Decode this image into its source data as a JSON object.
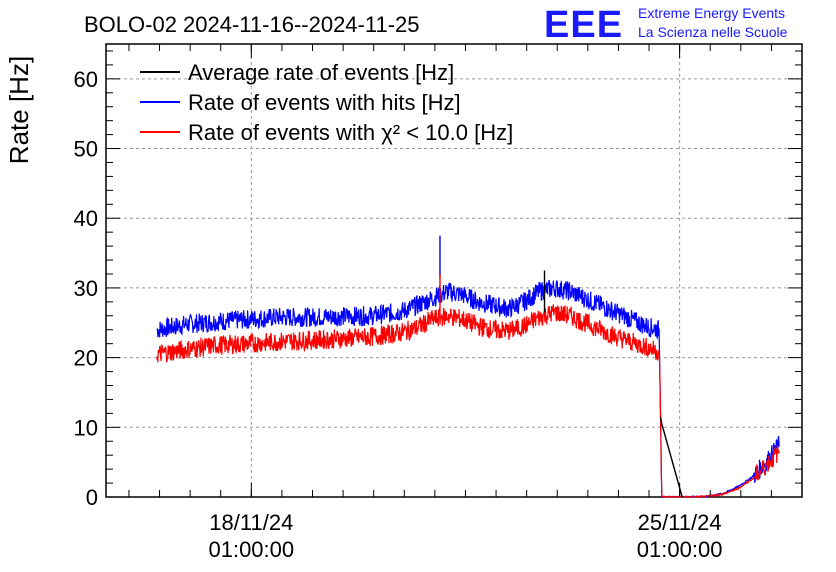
{
  "header": {
    "title": "BOLO-02 2024-11-16--2024-11-25",
    "logo_mark": "EEE",
    "logo_line1": "Extreme Energy Events",
    "logo_line2": "La Scienza nelle Scuole"
  },
  "colors": {
    "black": "#000000",
    "blue": "#0000ff",
    "red": "#ff0000",
    "logo": "#1a1aff"
  },
  "chart_data": {
    "type": "line",
    "ylabel": "Rate [Hz]",
    "xlabel": "",
    "ylim": [
      0,
      65
    ],
    "yticks": [
      0,
      10,
      20,
      30,
      40,
      50,
      60
    ],
    "xlim_days_label": "2024-11-16 to 2024-11-25",
    "xticks": [
      {
        "date": "2024-11-18T01:00:00",
        "label_line1": "18/11/24",
        "label_line2": "01:00:00"
      },
      {
        "date": "2024-11-25T01:00:00",
        "label_line1": "25/11/24",
        "label_line2": "01:00:00"
      }
    ],
    "grid": true,
    "legend_position": "top-left",
    "legend": [
      {
        "name": "Average rate of events [Hz]",
        "color": "#000000"
      },
      {
        "name": "Rate of events with hits [Hz]",
        "color": "#0000ff"
      },
      {
        "name": "Rate of events with χ² < 10.0 [Hz]",
        "color": "#ff0000"
      }
    ],
    "series": [
      {
        "name": "Rate of events with hits [Hz]",
        "color": "#0000ff",
        "x": [
          "2024-11-16T12:00",
          "2024-11-17T00:00",
          "2024-11-17T12:00",
          "2024-11-18T00:00",
          "2024-11-18T12:00",
          "2024-11-19T00:00",
          "2024-11-19T12:00",
          "2024-11-20T00:00",
          "2024-11-20T06:00",
          "2024-11-20T12:00",
          "2024-11-20T18:00",
          "2024-11-21T00:00",
          "2024-11-21T06:00",
          "2024-11-21T12:00",
          "2024-11-21T18:00",
          "2024-11-22T00:00",
          "2024-11-22T06:00",
          "2024-11-22T12:00",
          "2024-11-22T18:00",
          "2024-11-23T00:00",
          "2024-11-23T06:00",
          "2024-11-23T12:00",
          "2024-11-24T00:00",
          "2024-11-24T12:00",
          "2024-11-24T17:00",
          "2024-11-24T17:30",
          "2024-11-24T18:00",
          "2024-11-25T00:00",
          "2024-11-25T06:00",
          "2024-11-25T12:00",
          "2024-11-25T18:00",
          "2024-11-26T00:00",
          "2024-11-26T06:00",
          "2024-11-26T12:00",
          "2024-11-26T16:00"
        ],
        "values": [
          24.0,
          24.8,
          25.2,
          25.5,
          25.8,
          25.8,
          25.9,
          26.0,
          26.3,
          26.6,
          27.5,
          28.5,
          29.5,
          29.0,
          28.0,
          27.5,
          27.0,
          28.0,
          29.5,
          30.0,
          29.5,
          28.5,
          26.5,
          24.5,
          24.0,
          13.0,
          0.0,
          0.0,
          0.0,
          0.1,
          0.5,
          1.5,
          3.0,
          5.5,
          7.5
        ]
      },
      {
        "name": "Rate of events with χ² < 10.0 [Hz]",
        "color": "#ff0000",
        "x": [
          "2024-11-16T12:00",
          "2024-11-17T00:00",
          "2024-11-17T12:00",
          "2024-11-18T00:00",
          "2024-11-18T12:00",
          "2024-11-19T00:00",
          "2024-11-19T12:00",
          "2024-11-20T00:00",
          "2024-11-20T06:00",
          "2024-11-20T12:00",
          "2024-11-20T18:00",
          "2024-11-21T00:00",
          "2024-11-21T06:00",
          "2024-11-21T12:00",
          "2024-11-21T18:00",
          "2024-11-22T00:00",
          "2024-11-22T06:00",
          "2024-11-22T12:00",
          "2024-11-22T18:00",
          "2024-11-23T00:00",
          "2024-11-23T06:00",
          "2024-11-23T12:00",
          "2024-11-24T00:00",
          "2024-11-24T12:00",
          "2024-11-24T17:00",
          "2024-11-24T17:30",
          "2024-11-24T18:00",
          "2024-11-25T00:00",
          "2024-11-25T06:00",
          "2024-11-25T12:00",
          "2024-11-25T18:00",
          "2024-11-26T00:00",
          "2024-11-26T06:00",
          "2024-11-26T12:00",
          "2024-11-26T16:00"
        ],
        "values": [
          20.5,
          21.2,
          21.8,
          22.0,
          22.3,
          22.5,
          22.7,
          23.0,
          23.3,
          23.6,
          24.3,
          25.5,
          26.0,
          25.5,
          24.5,
          24.0,
          23.8,
          24.5,
          25.8,
          26.5,
          26.0,
          25.0,
          23.0,
          21.5,
          20.8,
          12.0,
          0.0,
          0.0,
          0.0,
          0.1,
          0.4,
          1.2,
          2.7,
          5.0,
          6.5
        ]
      },
      {
        "name": "Average rate of events [Hz]",
        "color": "#000000",
        "x": [
          "2024-11-24T17:30",
          "2024-11-24T18:00",
          "2024-11-25T02:00"
        ],
        "values": [
          11.5,
          10.5,
          0.0
        ]
      }
    ],
    "spikes": [
      {
        "series": "Rate of events with hits [Hz]",
        "x": "2024-11-21T03:00",
        "value": 37.5
      },
      {
        "series": "Rate of events with χ² < 10.0 [Hz]",
        "x": "2024-11-21T03:00",
        "value": 32.0
      },
      {
        "series": "Average rate of events [Hz]",
        "x": "2024-11-22T20:00",
        "value": 32.5
      }
    ]
  }
}
